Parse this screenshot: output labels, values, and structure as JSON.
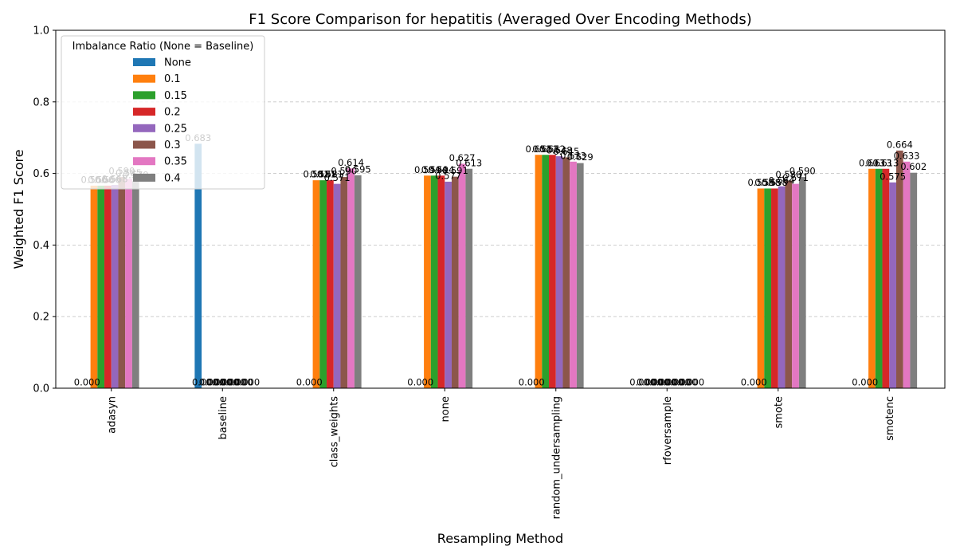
{
  "chart_data": {
    "type": "bar",
    "title": "F1 Score Comparison for hepatitis (Averaged Over Encoding Methods)",
    "xlabel": "Resampling Method",
    "ylabel": "Weighted F1 Score",
    "ylim": [
      0,
      1.0
    ],
    "yticks": [
      "0.0",
      "0.2",
      "0.4",
      "0.6",
      "0.8",
      "1.0"
    ],
    "grid": "y-dashed",
    "legend_title": "Imbalance Ratio (None = Baseline)",
    "legend_position": "top-left",
    "categories": [
      "adasyn",
      "baseline",
      "class_weights",
      "none",
      "random_undersampling",
      "rfoversample",
      "smote",
      "smotenc"
    ],
    "series": [
      {
        "name": "None",
        "color": "#1f77b4",
        "values": [
          0.0,
          0.683,
          0.0,
          0.0,
          0.0,
          0.0,
          0.0,
          0.0
        ]
      },
      {
        "name": "0.1",
        "color": "#ff7f0e",
        "values": [
          0.566,
          0.0,
          0.581,
          0.594,
          0.652,
          0.0,
          0.558,
          0.613
        ]
      },
      {
        "name": "0.15",
        "color": "#2ca02c",
        "values": [
          0.566,
          0.0,
          0.581,
          0.594,
          0.652,
          0.0,
          0.558,
          0.613
        ]
      },
      {
        "name": "0.2",
        "color": "#d62728",
        "values": [
          0.566,
          0.0,
          0.581,
          0.594,
          0.652,
          0.0,
          0.558,
          0.613
        ]
      },
      {
        "name": "0.25",
        "color": "#9467bd",
        "values": [
          0.568,
          0.0,
          0.571,
          0.577,
          0.648,
          0.0,
          0.564,
          0.575
        ]
      },
      {
        "name": "0.3",
        "color": "#8c564b",
        "values": [
          0.59,
          0.0,
          0.59,
          0.591,
          0.645,
          0.0,
          0.58,
          0.664
        ]
      },
      {
        "name": "0.35",
        "color": "#e377c2",
        "values": [
          0.585,
          0.0,
          0.614,
          0.627,
          0.633,
          0.0,
          0.571,
          0.633
        ]
      },
      {
        "name": "0.4",
        "color": "#7f7f7f",
        "values": [
          0.579,
          0.0,
          0.595,
          0.613,
          0.629,
          0.0,
          0.59,
          0.602
        ]
      }
    ]
  }
}
